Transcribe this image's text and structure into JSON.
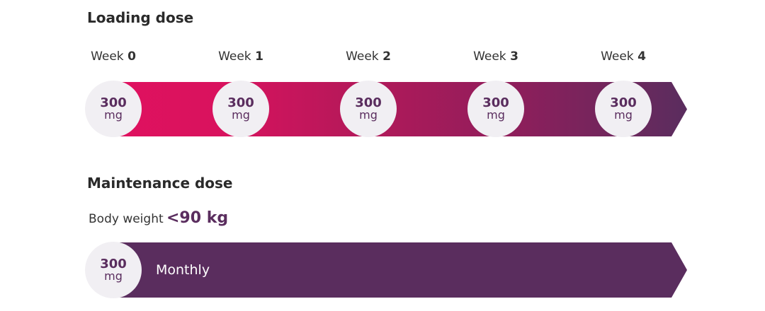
{
  "loading": {
    "title": "Loading dose",
    "week_word": "Week",
    "weeks": [
      "0",
      "1",
      "2",
      "3",
      "4"
    ],
    "dose_value": "300",
    "dose_unit": "mg"
  },
  "maintenance": {
    "title": "Maintenance dose",
    "weight_label": "Body weight",
    "weight_value": "<90 kg",
    "dose_value": "300",
    "dose_unit": "mg",
    "frequency": "Monthly"
  },
  "colors": {
    "gradient_start": "#e0115f",
    "gradient_end": "#5a2d5e",
    "maintenance_bar": "#5a2d5e",
    "circle": "#f1eff3"
  }
}
